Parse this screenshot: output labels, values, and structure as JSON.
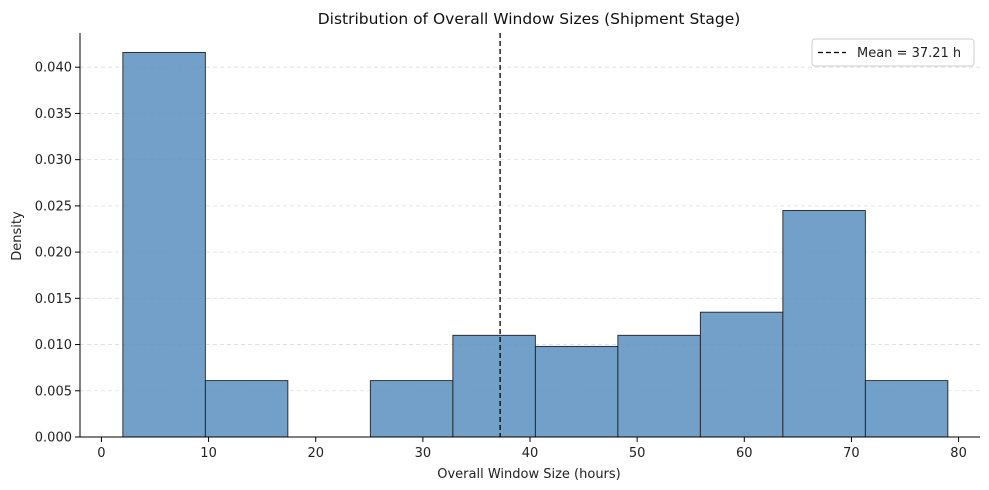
{
  "chart_data": {
    "type": "bar",
    "title": "Distribution of Overall Window Sizes (Shipment Stage)",
    "xlabel": "Overall Window Size (hours)",
    "ylabel": "Density",
    "xlim": [
      -2,
      82
    ],
    "ylim": [
      0,
      0.0437
    ],
    "xticks": [
      0,
      10,
      20,
      30,
      40,
      50,
      60,
      70,
      80
    ],
    "xtick_labels": [
      "0",
      "10",
      "20",
      "30",
      "40",
      "50",
      "60",
      "70",
      "80"
    ],
    "yticks": [
      0,
      0.005,
      0.01,
      0.015,
      0.02,
      0.025,
      0.03,
      0.035,
      0.04
    ],
    "ytick_labels": [
      "0.000",
      "0.005",
      "0.010",
      "0.015",
      "0.020",
      "0.025",
      "0.030",
      "0.035",
      "0.040"
    ],
    "bin_edges": [
      2.0,
      9.7,
      17.4,
      25.1,
      32.8,
      40.5,
      48.2,
      55.9,
      63.6,
      71.3,
      79.0
    ],
    "values": [
      0.0416,
      0.0061,
      0.0,
      0.0061,
      0.011,
      0.0098,
      0.011,
      0.0135,
      0.0245,
      0.0061
    ],
    "bar_color": "#5b8fbe",
    "mean": {
      "value": 37.21,
      "label": "Mean = 37.21 h",
      "style": "dashed",
      "color": "#000000"
    },
    "grid": "y dashed",
    "legend_position": "top-right"
  }
}
